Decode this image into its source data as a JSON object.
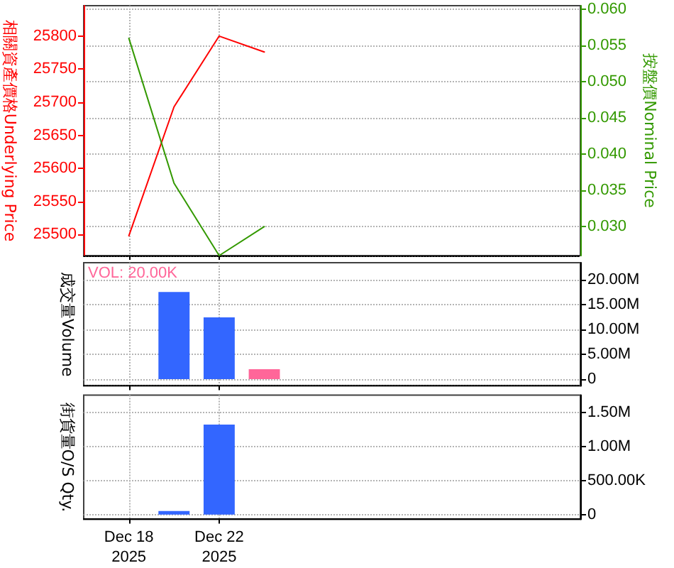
{
  "chart_data": [
    {
      "type": "line",
      "categories": [
        null,
        "Dec 18\n2025",
        null,
        "Dec 22\n2025",
        null,
        null,
        null,
        null,
        null,
        null,
        null,
        null
      ],
      "ylabel": "相關資產價格Underlying Price",
      "y2label": "按盤價Nominal Price",
      "series": [
        {
          "color": "#ff0000",
          "values": [
            null,
            25498,
            25693,
            25800,
            25776,
            null,
            null,
            null,
            null,
            null,
            null,
            null
          ]
        },
        {
          "color": "#339900",
          "axis": "y2",
          "values": [
            null,
            0.056,
            0.036,
            0.026,
            0.03,
            null,
            null,
            null,
            null,
            null,
            null,
            null
          ]
        }
      ],
      "ylim": [
        25468,
        25846
      ],
      "yticks": [
        25500,
        25550,
        25600,
        25650,
        25700,
        25750,
        25800
      ],
      "y2lim": [
        0.026,
        0.0605
      ],
      "y2ticks": [
        {
          "value": 0.03,
          "label": "0.030"
        },
        0.035,
        {
          "value": 0.04,
          "label": "0.040"
        },
        0.045,
        {
          "value": 0.05,
          "label": "0.050"
        },
        0.055,
        {
          "value": 0.06,
          "label": "0.060"
        }
      ],
      "grid": true,
      "marker": "none",
      "tick_labels": "y"
    },
    {
      "type": "bar",
      "categories": [
        null,
        "Dec 18\n2025",
        null,
        "Dec 22\n2025",
        null,
        null,
        null,
        null,
        null,
        null,
        null,
        null
      ],
      "ylabel": "成交量Volume",
      "values": [
        null,
        null,
        17500000,
        12400000,
        2000000,
        null,
        null,
        null,
        null,
        null,
        null,
        null
      ],
      "colors": [
        null,
        null,
        "#3366ff",
        "#3366ff",
        "#ff6699",
        null,
        null,
        null,
        null,
        null,
        null,
        null
      ],
      "ylim": [
        -1350000,
        23400000
      ],
      "yticks": [
        0,
        {
          "value": 5000000,
          "label": "5.00M"
        },
        {
          "value": 10000000,
          "label": "10.00M"
        },
        {
          "value": 15000000,
          "label": "15.00M"
        },
        {
          "value": 20000000,
          "label": "20.00M"
        }
      ],
      "grid": true,
      "tick_labels": "y",
      "annotations": [
        "VOL: 20.00K"
      ]
    },
    {
      "type": "bar",
      "categories": [
        null,
        "Dec 18\n2025",
        null,
        "Dec 22\n2025",
        null,
        null,
        null,
        null,
        null,
        null,
        null,
        null
      ],
      "ylabel": "街貨量O/S Qty.",
      "values": [
        null,
        null,
        50000,
        1320000,
        null,
        null,
        null,
        null,
        null,
        null,
        null,
        null
      ],
      "color": "#3366ff",
      "ylim": [
        -70000,
        1750000
      ],
      "yticks": [
        0,
        {
          "value": 500000,
          "label": "500.00K"
        },
        {
          "value": 1000000,
          "label": "1.00M"
        },
        {
          "value": 1500000,
          "label": "1.50M"
        }
      ],
      "grid": true
    }
  ]
}
